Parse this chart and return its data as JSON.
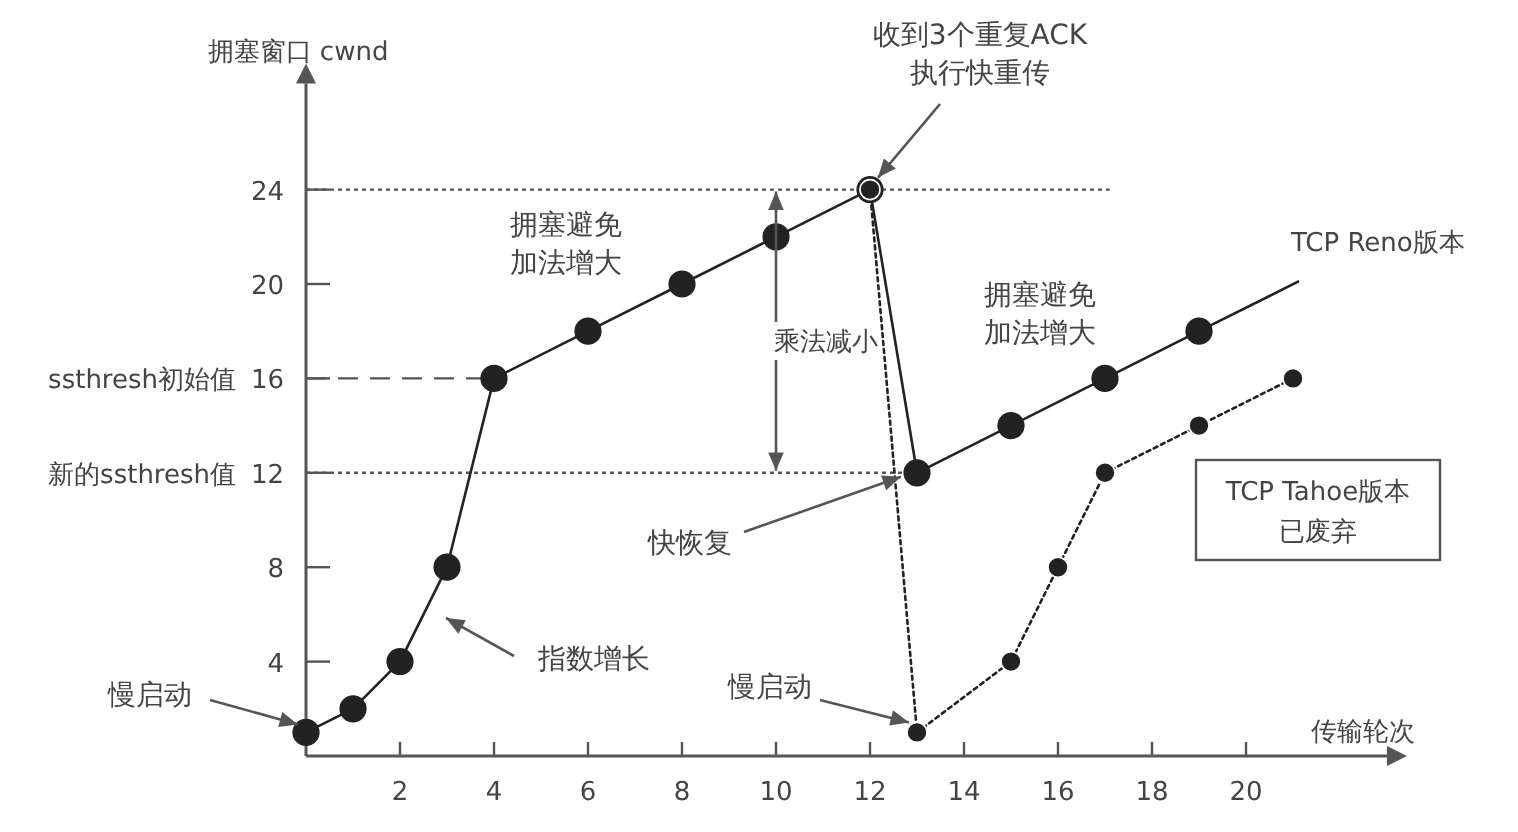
{
  "chart_data": {
    "type": "line",
    "xlabel": "传输轮次",
    "ylabel": "拥塞窗口 cwnd",
    "xlim": [
      0,
      23
    ],
    "ylim": [
      0,
      28.5
    ],
    "xticks": [
      2,
      4,
      6,
      8,
      10,
      12,
      14,
      16,
      18,
      20
    ],
    "yticks": [
      4,
      8,
      12,
      16,
      20,
      24
    ],
    "marker": "circle",
    "grid": false,
    "legend": false,
    "series": [
      {
        "name": "TCP Reno版本",
        "color": "#222222",
        "line_style": "solid",
        "x": [
          0,
          1,
          2,
          3,
          4,
          6,
          8,
          10,
          12,
          13,
          15,
          17,
          19
        ],
        "values": [
          1,
          2,
          4,
          8,
          16,
          18,
          20,
          22,
          24,
          12,
          14,
          16,
          18
        ]
      },
      {
        "name": "TCP Tahoe版本已废弃",
        "color": "#222222",
        "line_style": "dotted",
        "x": [
          12,
          13,
          15,
          16,
          17,
          19,
          21
        ],
        "values": [
          24,
          1,
          4,
          8,
          12,
          14,
          16
        ]
      }
    ],
    "ref_lines": [
      {
        "axis": "y",
        "value": 24,
        "label": null,
        "line_style": "dotted"
      },
      {
        "axis": "y",
        "value": 16,
        "label": "ssthresh初始值",
        "line_style": "dashed"
      },
      {
        "axis": "y",
        "value": 12,
        "label": "新的ssthresh值",
        "line_style": "dotted"
      }
    ],
    "annotations": [
      {
        "text": "收到3个重复ACK\n执行快重传",
        "x": 12,
        "y": 24
      },
      {
        "text": "慢启动",
        "x": 0,
        "y": 1
      },
      "指数增长",
      {
        "text": "快恢复",
        "x": 13,
        "y": 12
      },
      {
        "text": "慢启动",
        "x": 13,
        "y": 1
      },
      "乘法减小",
      "拥塞避免加法增大",
      "拥塞避免加法增大"
    ]
  }
}
